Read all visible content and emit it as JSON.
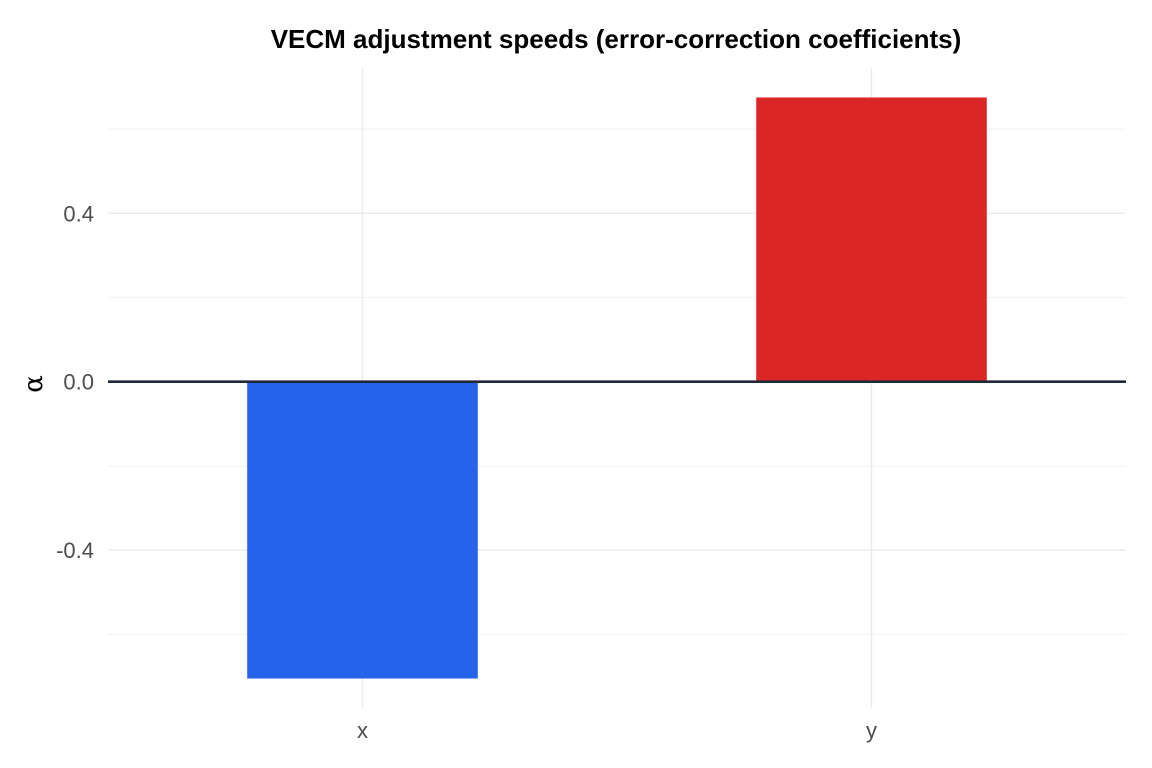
{
  "chart_data": {
    "type": "bar",
    "title": "VECM adjustment speeds (error-correction coefficients)",
    "xlabel": "",
    "ylabel": "α",
    "categories": [
      "x",
      "y"
    ],
    "values": [
      -0.705,
      0.675
    ],
    "colors": [
      "#2563eb",
      "#dc2626"
    ],
    "ylim": [
      -0.775,
      0.745
    ],
    "y_ticks": [
      -0.4,
      0.0,
      0.4
    ],
    "y_tick_labels": [
      "-0.4",
      "0.0",
      "0.4"
    ],
    "y_minor_ticks": [
      -0.6,
      -0.2,
      0.2,
      0.6
    ],
    "zero_line_color": "#1f2937",
    "grid": true,
    "legend": "none"
  }
}
